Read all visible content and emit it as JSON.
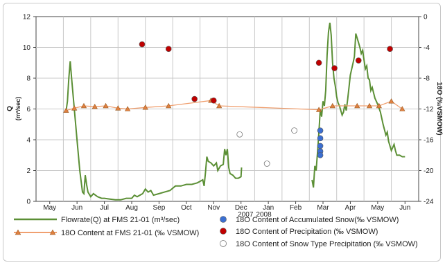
{
  "chart_data": {
    "type": "line",
    "y_left": {
      "label": "Q",
      "unit": "(m³/sec)",
      "ylim": [
        0,
        12
      ],
      "ticks": [
        "0",
        "2",
        "4",
        "6",
        "8",
        "10",
        "12"
      ]
    },
    "y_right": {
      "label": "18O (‰VSMOW)",
      "ylim": [
        -24,
        0
      ],
      "ticks": [
        "-24",
        "-20",
        "-16",
        "-12",
        "-8",
        "-4",
        "0"
      ]
    },
    "x_months": [
      "May",
      "Jun",
      "Jul",
      "Aug",
      "Sep",
      "Oct",
      "Nov",
      "Dec",
      "Jan",
      "Feb",
      "Mar",
      "Apr",
      "May",
      "Jun"
    ],
    "year_labels": [
      "2007",
      "2008"
    ],
    "grid": true,
    "legend_position": "bottom",
    "series": [
      {
        "name": "Flowrate(Q) at FMS 21-01 (m³/sec)",
        "axis": "left",
        "color": "#5b8f35",
        "points": [
          [
            0.6,
            5.9
          ],
          [
            0.65,
            6.5
          ],
          [
            0.7,
            8.0
          ],
          [
            0.75,
            9.1
          ],
          [
            0.8,
            8.0
          ],
          [
            0.9,
            6.0
          ],
          [
            1.0,
            4.0
          ],
          [
            1.1,
            2.0
          ],
          [
            1.2,
            0.6
          ],
          [
            1.25,
            0.5
          ],
          [
            1.3,
            1.7
          ],
          [
            1.35,
            1.1
          ],
          [
            1.4,
            0.6
          ],
          [
            1.5,
            0.3
          ],
          [
            1.6,
            0.5
          ],
          [
            1.75,
            0.3
          ],
          [
            1.9,
            0.2
          ],
          [
            2.0,
            0.2
          ],
          [
            2.2,
            0.15
          ],
          [
            2.4,
            0.1
          ],
          [
            2.6,
            0.1
          ],
          [
            2.8,
            0.2
          ],
          [
            3.0,
            0.2
          ],
          [
            3.1,
            0.4
          ],
          [
            3.2,
            0.3
          ],
          [
            3.4,
            0.5
          ],
          [
            3.5,
            0.8
          ],
          [
            3.6,
            0.6
          ],
          [
            3.7,
            0.7
          ],
          [
            3.8,
            0.4
          ],
          [
            4.0,
            0.5
          ],
          [
            4.2,
            0.6
          ],
          [
            4.4,
            0.7
          ],
          [
            4.6,
            1.0
          ],
          [
            4.8,
            1.0
          ],
          [
            5.0,
            1.1
          ],
          [
            5.2,
            1.1
          ],
          [
            5.4,
            1.2
          ],
          [
            5.5,
            1.3
          ],
          [
            5.6,
            1.4
          ],
          [
            5.65,
            1.0
          ],
          [
            5.7,
            1.9
          ],
          [
            5.75,
            2.9
          ],
          [
            5.8,
            2.6
          ],
          [
            5.9,
            2.5
          ],
          [
            6.0,
            2.3
          ],
          [
            6.1,
            2.5
          ],
          [
            6.15,
            2.0
          ],
          [
            6.25,
            2.3
          ],
          [
            6.35,
            2.4
          ],
          [
            6.4,
            3.4
          ],
          [
            6.45,
            3.0
          ],
          [
            6.5,
            3.4
          ],
          [
            6.55,
            2.2
          ],
          [
            6.6,
            1.8
          ],
          [
            6.7,
            1.7
          ],
          [
            6.75,
            1.6
          ],
          [
            6.8,
            1.5
          ],
          [
            6.9,
            1.5
          ],
          [
            7.0,
            1.6
          ],
          [
            7.02,
            2.2
          ],
          null,
          [
            9.6,
            1.4
          ],
          [
            9.65,
            0.9
          ],
          [
            9.7,
            2.3
          ],
          [
            9.75,
            2.0
          ],
          [
            9.8,
            3.2
          ],
          [
            9.85,
            4.5
          ],
          [
            9.9,
            6.0
          ],
          [
            9.95,
            5.5
          ],
          [
            10.0,
            6.5
          ],
          [
            10.05,
            6.2
          ],
          [
            10.1,
            7.2
          ],
          [
            10.15,
            9.5
          ],
          [
            10.2,
            11.0
          ],
          [
            10.25,
            11.6
          ],
          [
            10.3,
            10.8
          ],
          [
            10.35,
            9.0
          ],
          [
            10.4,
            8.0
          ],
          [
            10.45,
            7.5
          ],
          [
            10.5,
            6.8
          ],
          [
            10.55,
            6.4
          ],
          [
            10.6,
            6.2
          ],
          [
            10.7,
            5.6
          ],
          [
            10.75,
            5.8
          ],
          [
            10.8,
            6.3
          ],
          [
            10.85,
            5.9
          ],
          [
            10.9,
            6.6
          ],
          [
            10.95,
            7.4
          ],
          [
            11.0,
            8.2
          ],
          [
            11.05,
            8.6
          ],
          [
            11.1,
            9.0
          ],
          [
            11.15,
            9.4
          ],
          [
            11.2,
            10.9
          ],
          [
            11.25,
            10.6
          ],
          [
            11.3,
            10.3
          ],
          [
            11.35,
            10.0
          ],
          [
            11.4,
            9.6
          ],
          [
            11.45,
            9.8
          ],
          [
            11.5,
            9.2
          ],
          [
            11.55,
            8.6
          ],
          [
            11.6,
            8.8
          ],
          [
            11.65,
            8.0
          ],
          [
            11.7,
            7.9
          ],
          [
            11.75,
            7.2
          ],
          [
            11.8,
            7.4
          ],
          [
            11.9,
            6.7
          ],
          [
            12.0,
            6.3
          ],
          [
            12.1,
            5.8
          ],
          [
            12.2,
            5.0
          ],
          [
            12.3,
            4.3
          ],
          [
            12.35,
            4.5
          ],
          [
            12.4,
            3.9
          ],
          [
            12.5,
            3.3
          ],
          [
            12.6,
            3.7
          ],
          [
            12.65,
            3.3
          ],
          [
            12.7,
            3.0
          ],
          [
            12.8,
            3.0
          ],
          [
            12.9,
            2.9
          ],
          [
            13.0,
            2.9
          ]
        ]
      },
      {
        "name": "18O Content at FMS 21-01 (‰ VSMOW)",
        "axis": "right",
        "color": "#f0a070",
        "marker": "triangle",
        "marker_color": "#e08040",
        "points": [
          [
            0.6,
            -12.2
          ],
          [
            0.9,
            -11.9
          ],
          [
            1.25,
            -11.6
          ],
          [
            1.65,
            -11.7
          ],
          [
            2.05,
            -11.6
          ],
          [
            2.5,
            -11.9
          ],
          [
            2.85,
            -12.0
          ],
          [
            3.5,
            -11.8
          ],
          [
            4.35,
            -11.6
          ],
          [
            5.9,
            -10.9
          ],
          [
            6.2,
            -11.6
          ],
          [
            9.85,
            -12.1
          ],
          [
            10.35,
            -11.6
          ],
          [
            11.25,
            -11.6
          ],
          [
            11.7,
            -11.6
          ],
          [
            12.05,
            -11.6
          ],
          [
            12.5,
            -11.0
          ],
          [
            12.9,
            -12.0
          ]
        ]
      },
      {
        "name": "18O Content of Accumulated Snow(‰ VSMOW)",
        "axis": "right",
        "color": "#3b6fd1",
        "marker": "circle",
        "points": [
          [
            9.9,
            -14.8
          ],
          [
            9.9,
            -15.8
          ],
          [
            9.9,
            -16.8
          ],
          [
            9.9,
            -17.5
          ],
          [
            9.9,
            -18.0
          ]
        ]
      },
      {
        "name": "18O Content of Precipitation  (‰ VSMOW)",
        "axis": "right",
        "color": "#c00000",
        "marker": "circle",
        "points": [
          [
            3.38,
            -3.6
          ],
          [
            4.35,
            -4.2
          ],
          [
            5.3,
            -10.7
          ],
          [
            6.0,
            -10.9
          ],
          [
            9.85,
            -6.0
          ],
          [
            10.42,
            -6.7
          ],
          [
            11.3,
            -5.7
          ],
          [
            12.45,
            -4.2
          ]
        ]
      },
      {
        "name": "18O Content of Snow Type Precipitation  (‰ VSMOW)",
        "axis": "right",
        "color": "#ffffff",
        "marker": "circle_open",
        "points": [
          [
            6.95,
            -15.3
          ],
          [
            7.95,
            -19.1
          ],
          [
            8.95,
            -14.8
          ]
        ]
      }
    ]
  }
}
